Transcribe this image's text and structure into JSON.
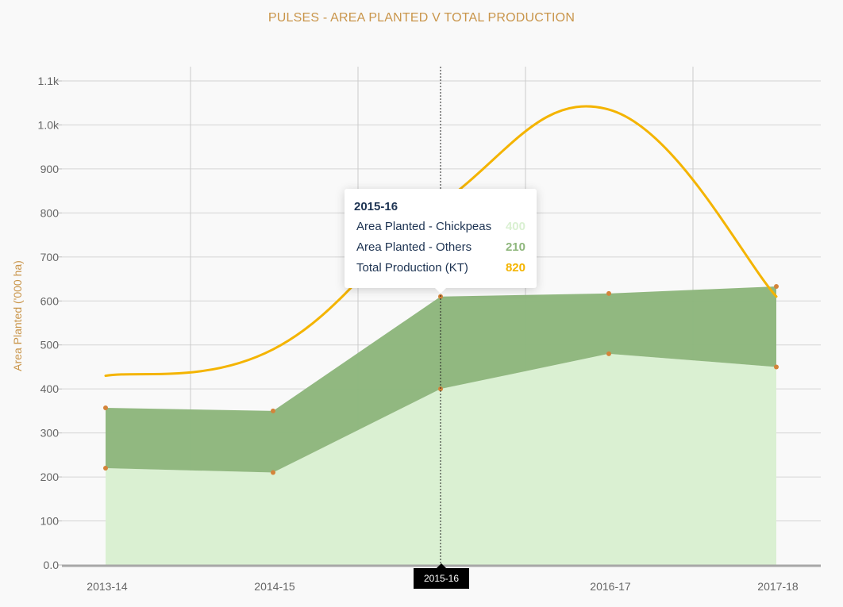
{
  "chart_data": {
    "type": "area",
    "title": "PULSES - AREA PLANTED V TOTAL PRODUCTION",
    "ylabel": "Area Planted ('000 ha)",
    "xlabel": "",
    "categories": [
      "2013-14",
      "2014-15",
      "2015-16",
      "2016-17",
      "2017-18"
    ],
    "y_ticks": [
      "0.0",
      "100",
      "200",
      "300",
      "400",
      "500",
      "600",
      "700",
      "800",
      "900",
      "1.0k",
      "1.1k"
    ],
    "ylim": [
      0,
      1100
    ],
    "grid": true,
    "series": [
      {
        "name": "Area Planted - Chickpeas",
        "type": "area",
        "stacked": true,
        "color": "#daf0d2",
        "values": [
          220,
          210,
          400,
          480,
          450
        ]
      },
      {
        "name": "Area Planted - Others",
        "type": "area",
        "stacked": true,
        "color": "#8fb77d",
        "values": [
          137,
          140,
          210,
          137,
          183
        ]
      },
      {
        "name": "Total Production (KT)",
        "type": "line",
        "color": "#f4b400",
        "values": [
          430,
          490,
          820,
          1035,
          610
        ]
      }
    ],
    "marker_color": "#d4843a"
  },
  "tooltip": {
    "title": "2015-16",
    "rows": [
      {
        "label": "Area Planted - Chickpeas",
        "value": "400",
        "color": "#daf0d2"
      },
      {
        "label": "Area Planted - Others",
        "value": "210",
        "color": "#8fb77d"
      },
      {
        "label": "Total Production (KT)",
        "value": "820",
        "color": "#f4b400"
      }
    ]
  },
  "crosshair": {
    "label": "2015-16"
  }
}
